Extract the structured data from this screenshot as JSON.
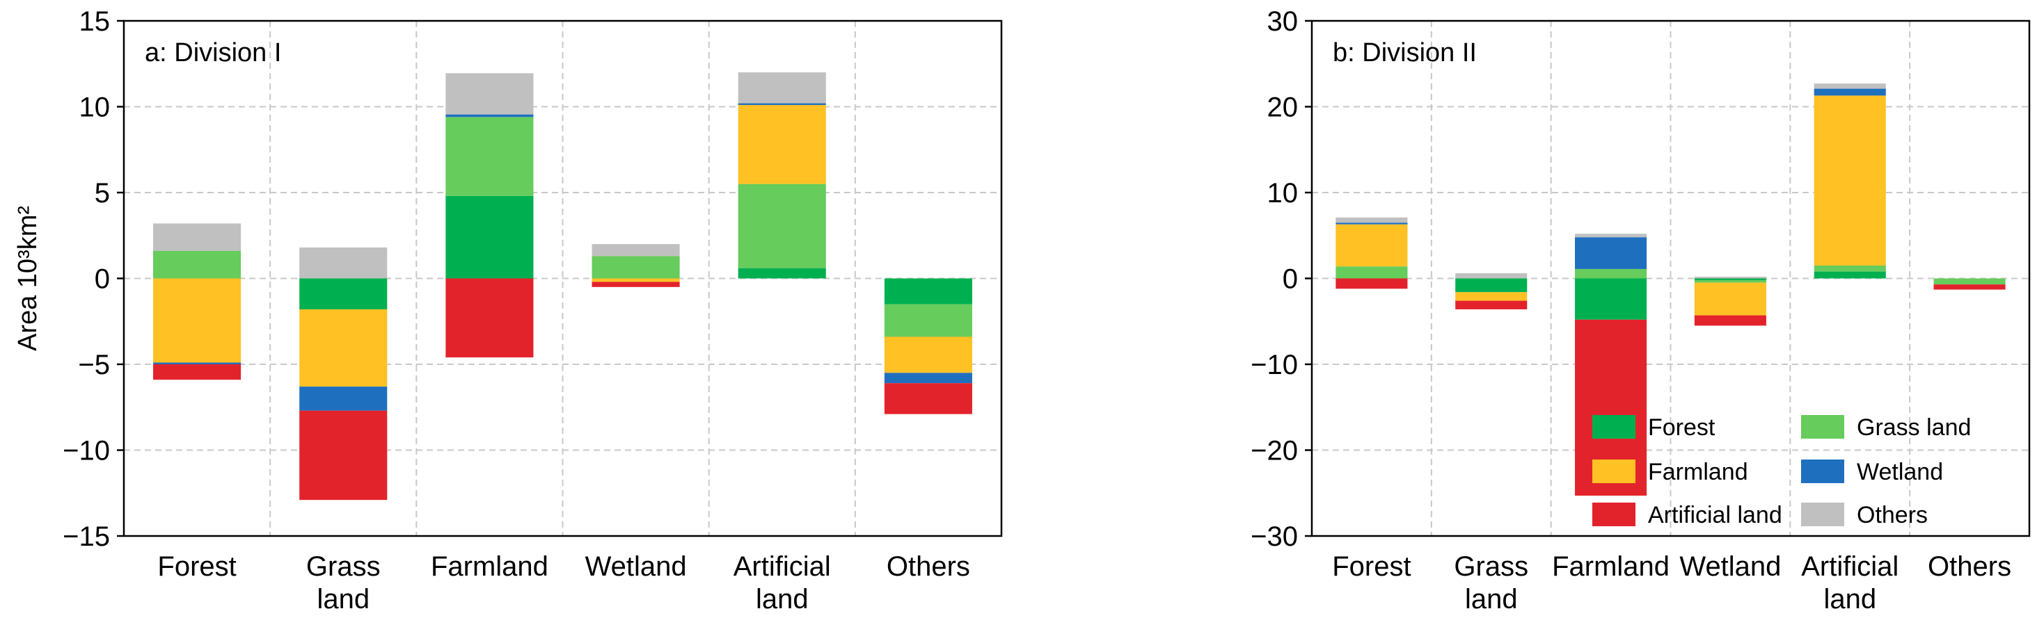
{
  "colors": {
    "Forest": "#00b050",
    "Grass land": "#66cc5c",
    "Farmland": "#ffc124",
    "Wetland": "#1f6fbf",
    "Artificial land": "#e3232b",
    "Others": "#c0c0c0"
  },
  "chart_data": [
    {
      "type": "bar",
      "stacked": true,
      "title": "a: Division I",
      "ylabel": "Area  10³km²",
      "xlabel": "",
      "ylim": [
        -15,
        15
      ],
      "yticks": [
        -15,
        -10,
        -5,
        0,
        5,
        10,
        15
      ],
      "categories": [
        [
          "Forest"
        ],
        [
          "Grass",
          "land"
        ],
        [
          "Farmland"
        ],
        [
          "Wetland"
        ],
        [
          "Artificial",
          "land"
        ],
        [
          "Others"
        ]
      ],
      "grid": true,
      "legend": "none",
      "series": [
        {
          "name": "Forest",
          "values": [
            0,
            -1.8,
            4.8,
            0,
            0.6,
            -1.5
          ]
        },
        {
          "name": "Grass land",
          "values": [
            1.6,
            0,
            4.6,
            1.3,
            4.9,
            -1.9
          ]
        },
        {
          "name": "Farmland",
          "values": [
            -4.9,
            -4.5,
            0,
            -0.2,
            4.6,
            -2.1
          ]
        },
        {
          "name": "Wetland",
          "values": [
            -0.1,
            -1.4,
            0.15,
            0,
            0.1,
            -0.6
          ]
        },
        {
          "name": "Artificial land",
          "values": [
            -0.9,
            -5.2,
            -4.6,
            -0.3,
            0,
            -1.8
          ]
        },
        {
          "name": "Others",
          "values": [
            1.6,
            1.8,
            2.4,
            0.7,
            1.8,
            0
          ]
        }
      ]
    },
    {
      "type": "bar",
      "stacked": true,
      "title": "b: Division II",
      "ylabel": "",
      "xlabel": "",
      "ylim": [
        -30,
        30
      ],
      "yticks": [
        -30,
        -20,
        -10,
        0,
        10,
        20,
        30
      ],
      "categories": [
        [
          "Forest"
        ],
        [
          "Grass",
          "land"
        ],
        [
          "Farmland"
        ],
        [
          "Wetland"
        ],
        [
          "Artificial",
          "land"
        ],
        [
          "Others"
        ]
      ],
      "grid": true,
      "legend": "bottom-right",
      "series": [
        {
          "name": "Forest",
          "values": [
            0,
            -1.6,
            -4.8,
            -0.2,
            0.8,
            0
          ]
        },
        {
          "name": "Grass land",
          "values": [
            1.4,
            0,
            1.1,
            -0.3,
            0.7,
            -0.7
          ]
        },
        {
          "name": "Farmland",
          "values": [
            4.9,
            -1.0,
            0,
            -3.8,
            19.8,
            0
          ]
        },
        {
          "name": "Wetland",
          "values": [
            0.2,
            0,
            3.7,
            0,
            0.8,
            0
          ]
        },
        {
          "name": "Artificial land",
          "values": [
            -1.2,
            -1.0,
            -20.5,
            -1.2,
            0,
            -0.6
          ]
        },
        {
          "name": "Others",
          "values": [
            0.6,
            0.6,
            0.4,
            0.2,
            0.6,
            0
          ]
        }
      ]
    }
  ]
}
